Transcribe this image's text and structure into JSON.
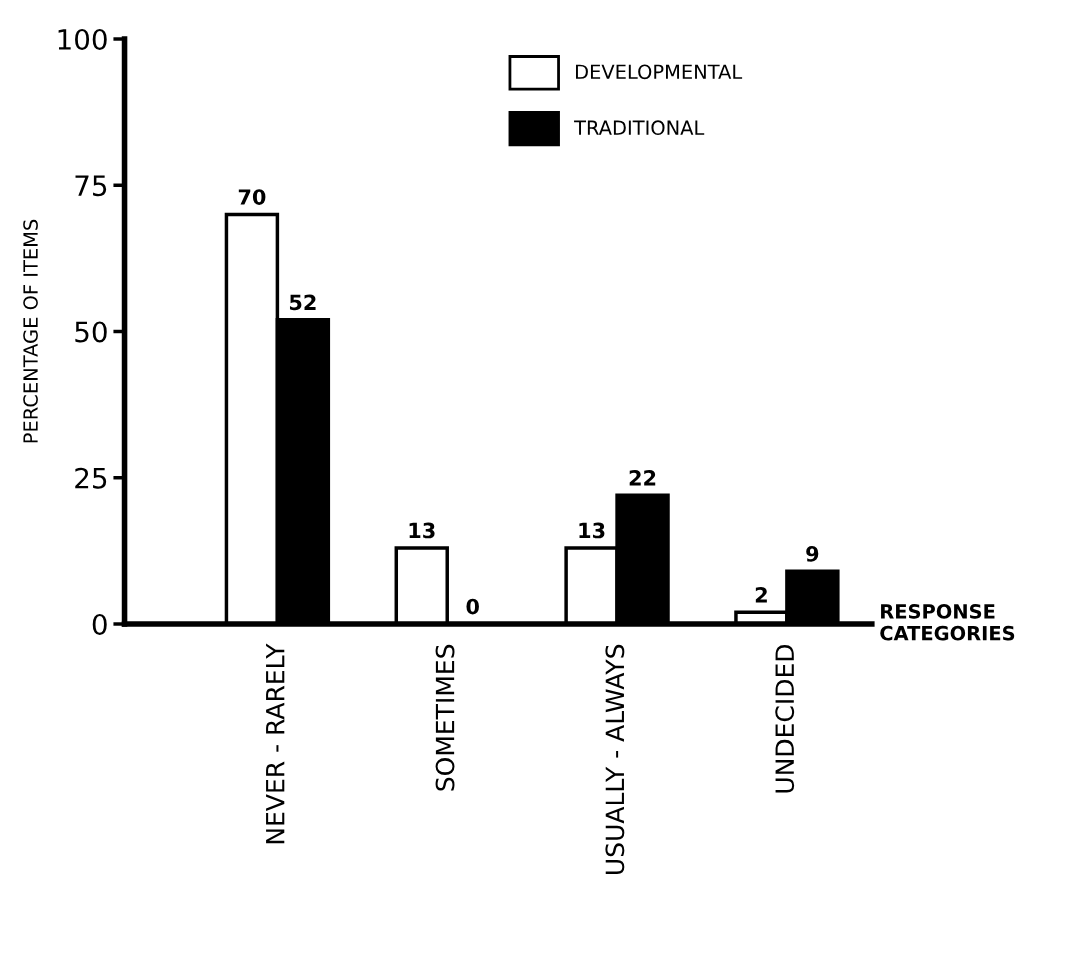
{
  "chart_data": {
    "type": "bar",
    "xlabel": "RESPONSE\nCATEGORIES",
    "ylabel": "PERCENTAGE OF ITEMS",
    "categories": [
      "NEVER - RARELY",
      "SOMETIMES",
      "USUALLY - ALWAYS",
      "UNDECIDED"
    ],
    "series": [
      {
        "name": "DEVELOPMENTAL",
        "color": "#ffffff",
        "values": [
          70,
          13,
          13,
          2
        ]
      },
      {
        "name": "TRADITIONAL",
        "color": "#000000",
        "values": [
          52,
          0,
          22,
          9
        ]
      }
    ],
    "ylim": [
      0,
      100
    ],
    "yticks": [
      0,
      25,
      50,
      75,
      100
    ],
    "grid": false,
    "legend": "top right",
    "data_labels": true
  }
}
